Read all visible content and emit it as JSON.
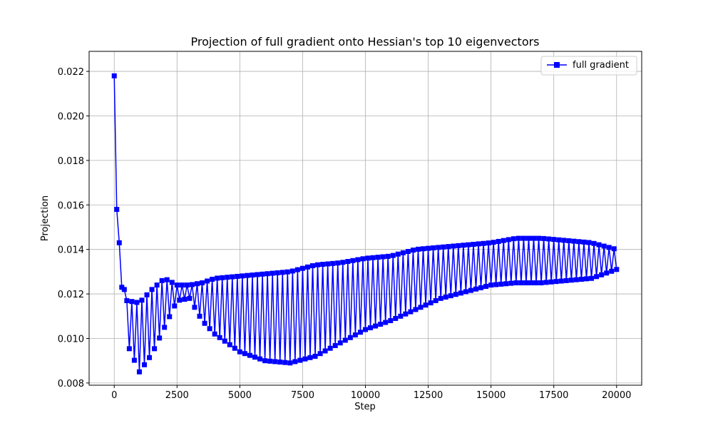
{
  "chart_data": {
    "type": "line",
    "title": "Projection of full gradient onto Hessian's top 10 eigenvectors",
    "xlabel": "Step",
    "ylabel": "Projection",
    "xlim": [
      -1000,
      21000
    ],
    "ylim": [
      0.0079,
      0.0229
    ],
    "xticks": [
      0,
      2500,
      5000,
      7500,
      10000,
      12500,
      15000,
      17500,
      20000
    ],
    "xtick_labels": [
      "0",
      "2500",
      "5000",
      "7500",
      "10000",
      "12500",
      "15000",
      "17500",
      "20000"
    ],
    "yticks": [
      0.008,
      0.01,
      0.012,
      0.014,
      0.016,
      0.018,
      0.02,
      0.022
    ],
    "ytick_labels": [
      "0.008",
      "0.010",
      "0.012",
      "0.014",
      "0.016",
      "0.018",
      "0.020",
      "0.022"
    ],
    "grid": true,
    "legend_position": "top-right",
    "series_color": "#0000ff",
    "marker": "square",
    "series": [
      {
        "name": "full gradient",
        "x_start": 0,
        "x_step": 100,
        "initial_values": [
          0.0218,
          0.0158,
          0.0143,
          0.0123,
          0.0122
        ],
        "upper_envelope": [
          [
            500,
            0.0117
          ],
          [
            1000,
            0.0116
          ],
          [
            1500,
            0.0122
          ],
          [
            2000,
            0.0127
          ],
          [
            2500,
            0.0124
          ],
          [
            3000,
            0.0124
          ],
          [
            3500,
            0.0125
          ],
          [
            4000,
            0.0127
          ],
          [
            5000,
            0.0128
          ],
          [
            6000,
            0.0129
          ],
          [
            7000,
            0.013
          ],
          [
            8000,
            0.0133
          ],
          [
            9000,
            0.0134
          ],
          [
            10000,
            0.0136
          ],
          [
            11000,
            0.0137
          ],
          [
            12000,
            0.014
          ],
          [
            13000,
            0.0141
          ],
          [
            14000,
            0.0142
          ],
          [
            15000,
            0.0143
          ],
          [
            16000,
            0.0145
          ],
          [
            17000,
            0.0145
          ],
          [
            18000,
            0.0144
          ],
          [
            19000,
            0.0143
          ],
          [
            20000,
            0.014
          ]
        ],
        "lower_envelope": [
          [
            500,
            0.0098
          ],
          [
            1000,
            0.0085
          ],
          [
            1500,
            0.0093
          ],
          [
            2000,
            0.0105
          ],
          [
            2500,
            0.0117
          ],
          [
            3000,
            0.0118
          ],
          [
            3500,
            0.0108
          ],
          [
            4000,
            0.0102
          ],
          [
            5000,
            0.0094
          ],
          [
            6000,
            0.009
          ],
          [
            7000,
            0.0089
          ],
          [
            8000,
            0.0092
          ],
          [
            9000,
            0.0098
          ],
          [
            10000,
            0.0104
          ],
          [
            11000,
            0.0108
          ],
          [
            12000,
            0.0113
          ],
          [
            13000,
            0.0118
          ],
          [
            14000,
            0.0121
          ],
          [
            15000,
            0.0124
          ],
          [
            16000,
            0.0125
          ],
          [
            17000,
            0.0125
          ],
          [
            18000,
            0.0126
          ],
          [
            19000,
            0.0127
          ],
          [
            20000,
            0.0131
          ]
        ]
      }
    ]
  }
}
